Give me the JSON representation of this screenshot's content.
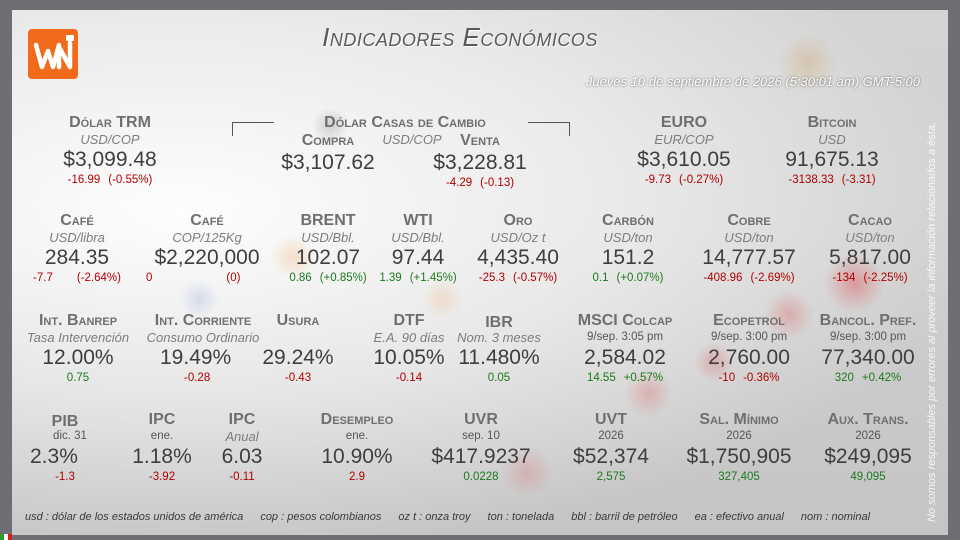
{
  "header": {
    "title": "Indicadores Económicos",
    "datetime": "Jueves 10 de septiembre de 2026 (5:30:01 am) GMT-5:00",
    "side_note": "No somos responsables por errores al proveer la información relacionados a ésta."
  },
  "colors": {
    "logo": "#f26a1b",
    "negative": "#b00000",
    "positive": "#1c7a1c"
  },
  "row1": {
    "trm": {
      "label": "Dólar TRM",
      "unit": "USD/COP",
      "value": "$3,099.48",
      "chg_abs": "-16.99",
      "chg_pct": "(-0.55%)"
    },
    "casas": {
      "label": "Dólar Casas de Cambio",
      "unit": "USD/COP"
    },
    "compra": {
      "label": "Compra",
      "value": "$3,107.62"
    },
    "venta": {
      "label": "Venta",
      "value": "$3,228.81",
      "chg_abs": "-4.29",
      "chg_pct": "(-0.13)"
    },
    "euro": {
      "label": "EURO",
      "unit": "EUR/COP",
      "value": "$3,610.05",
      "chg_abs": "-9.73",
      "chg_pct": "(-0.27%)"
    },
    "bitcoin": {
      "label": "Bitcoin",
      "unit": "USD",
      "value": "91,675.13",
      "chg_abs": "-3138.33",
      "chg_pct": "(-3.31)"
    }
  },
  "row2": {
    "cafe_usd": {
      "label": "Café",
      "unit": "USD/libra",
      "value": "284.35",
      "chg_abs": "-7.7",
      "chg_pct": "(-2.64%)"
    },
    "cafe_cop": {
      "label": "Café",
      "unit": "COP/125Kg",
      "value": "$2,220,000",
      "chg_abs": "0",
      "chg_pct": "(0)"
    },
    "brent": {
      "label": "BRENT",
      "unit": "USD/Bbl.",
      "value": "102.07",
      "chg_abs": "0.86",
      "chg_pct": "(+0.85%)"
    },
    "wti": {
      "label": "WTI",
      "unit": "USD/Bbl.",
      "value": "97.44",
      "chg_abs": "1.39",
      "chg_pct": "(+1.45%)"
    },
    "oro": {
      "label": "Oro",
      "unit": "USD/Oz t",
      "value": "4,435.40",
      "chg_abs": "-25.3",
      "chg_pct": "(-0.57%)"
    },
    "carbon": {
      "label": "Carbón",
      "unit": "USD/ton",
      "value": "151.2",
      "chg_abs": "0.1",
      "chg_pct": "(+0.07%)"
    },
    "cobre": {
      "label": "Cobre",
      "unit": "USD/ton",
      "value": "14,777.57",
      "chg_abs": "-408.96",
      "chg_pct": "(-2.69%)"
    },
    "cacao": {
      "label": "Cacao",
      "unit": "USD/ton",
      "value": "5,817.00",
      "chg_abs": "-134",
      "chg_pct": "(-2.25%)"
    }
  },
  "row3": {
    "banrep": {
      "label": "Int. Banrep",
      "unit": "Tasa Intervención",
      "value": "12.00%",
      "chg": "0.75"
    },
    "corriente": {
      "label": "Int. Corriente",
      "unit": "Consumo Ordinario",
      "value": "19.49%",
      "chg": "-0.28"
    },
    "usura": {
      "label": "Usura",
      "value": "29.24%",
      "chg": "-0.43"
    },
    "dtf": {
      "label": "DTF",
      "unit": "E.A. 90 días",
      "value": "10.05%",
      "chg": "-0.14"
    },
    "ibr": {
      "label": "IBR",
      "unit": "Nom. 3 meses",
      "value": "11.480%",
      "chg": "0.05"
    },
    "msci": {
      "label": "MSCI Colcap",
      "unit": "9/sep. 3:05 pm",
      "value": "2,584.02",
      "chg_abs": "14.55",
      "chg_pct": "+0.57%"
    },
    "ecopetrol": {
      "label": "Ecopetrol",
      "unit": "9/sep. 3:00 pm",
      "value": "2,760.00",
      "chg_abs": "-10",
      "chg_pct": "-0.36%"
    },
    "bancol": {
      "label": "Bancol. Pref.",
      "unit": "9/sep. 3:00 pm",
      "value": "77,340.00",
      "chg_abs": "320",
      "chg_pct": "+0.42%"
    }
  },
  "row4": {
    "pib": {
      "label": "PIB",
      "unit": "dic. 31",
      "value": "2.3%",
      "chg": "-1.3"
    },
    "ipc1": {
      "label": "IPC",
      "unit": "ene.",
      "value": "1.18%",
      "chg": "-3.92"
    },
    "ipc2": {
      "label": "IPC",
      "unit": "Anual",
      "value": "6.03",
      "chg": "-0.11"
    },
    "desempleo": {
      "label": "Desempleo",
      "unit": "ene.",
      "value": "10.90%",
      "chg": "2.9"
    },
    "uvr": {
      "label": "UVR",
      "unit": "sep. 10",
      "value": "$417.9237",
      "chg": "0.0228"
    },
    "uvt": {
      "label": "UVT",
      "unit": "2026",
      "value": "$52,374",
      "chg": "2,575"
    },
    "salmin": {
      "label": "Sal. Mínimo",
      "unit": "2026",
      "value": "$1,750,905",
      "chg": "327,405"
    },
    "auxtrans": {
      "label": "Aux. Trans.",
      "unit": "2026",
      "value": "$249,095",
      "chg": "49,095"
    }
  },
  "footer": [
    "usd : dólar de los estados unidos de américa",
    "cop : pesos colombianos",
    "oz t : onza troy",
    "ton : tonelada",
    "bbl : barril de petróleo",
    "ea : efectivo anual",
    "nom : nominal"
  ]
}
